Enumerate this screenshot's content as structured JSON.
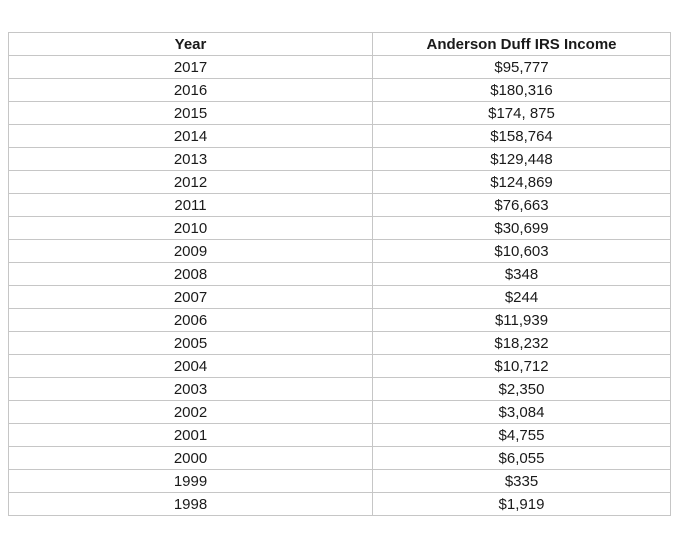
{
  "chart_data": {
    "type": "table",
    "columns": [
      "Year",
      "Anderson Duff IRS Income"
    ],
    "rows": [
      [
        "2017",
        "$95,777"
      ],
      [
        "2016",
        "$180,316"
      ],
      [
        "2015",
        "$174, 875"
      ],
      [
        "2014",
        "$158,764"
      ],
      [
        "2013",
        "$129,448"
      ],
      [
        "2012",
        "$124,869"
      ],
      [
        "2011",
        "$76,663"
      ],
      [
        "2010",
        "$30,699"
      ],
      [
        "2009",
        "$10,603"
      ],
      [
        "2008",
        "$348"
      ],
      [
        "2007",
        "$244"
      ],
      [
        "2006",
        "$11,939"
      ],
      [
        "2005",
        "$18,232"
      ],
      [
        "2004",
        "$10,712"
      ],
      [
        "2003",
        "$2,350"
      ],
      [
        "2002",
        "$3,084"
      ],
      [
        "2001",
        "$4,755"
      ],
      [
        "2000",
        "$6,055"
      ],
      [
        "1999",
        "$335"
      ],
      [
        "1998",
        "$1,919"
      ]
    ],
    "income_values_numeric": [
      95777,
      180316,
      174875,
      158764,
      129448,
      124869,
      76663,
      30699,
      10603,
      348,
      244,
      11939,
      18232,
      10712,
      2350,
      3084,
      4755,
      6055,
      335,
      1919
    ],
    "layout": {
      "grid": "on",
      "border_color": "#c6c6c6",
      "text_color": "#1a1a1a",
      "background_color": "#ffffff",
      "cell_alignment": "center"
    }
  }
}
